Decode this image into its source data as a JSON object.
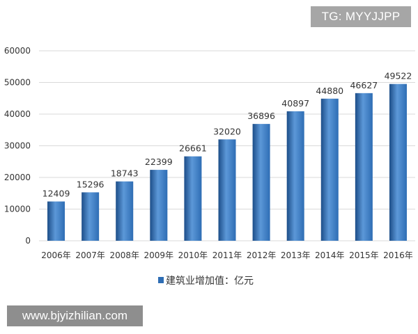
{
  "watermarks": {
    "top": "TG: MYYJJPP",
    "bottom": "www.bjyizhilian.com"
  },
  "colors": {
    "bar": "#2e6db4",
    "bar_highlight": "#5c98d8",
    "bar_shadow": "#1c4d88",
    "grid": "#d9d9d9",
    "text": "#333333"
  },
  "chart_data": {
    "type": "bar",
    "categories": [
      "2006年",
      "2007年",
      "2008年",
      "2009年",
      "2010年",
      "2011年",
      "2012年",
      "2013年",
      "2014年",
      "2015年",
      "2016年"
    ],
    "series": [
      {
        "name": "建筑业增加值：亿元",
        "values": [
          12409,
          15296,
          18743,
          22399,
          26661,
          32020,
          36896,
          40897,
          44880,
          46627,
          49522
        ]
      }
    ],
    "yticks": [
      "0",
      "10000",
      "20000",
      "30000",
      "40000",
      "50000",
      "60000"
    ],
    "ylim": [
      0,
      60000
    ],
    "grid": true,
    "legend_position": "bottom"
  }
}
